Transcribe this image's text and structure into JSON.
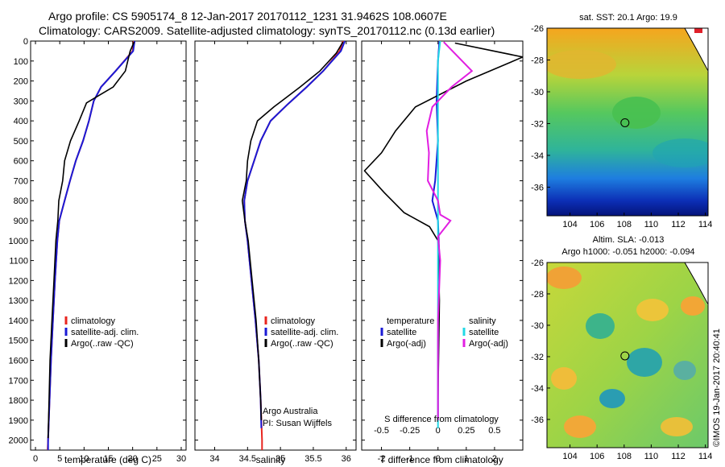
{
  "header": {
    "line1": "Argo profile: CS 5905174_8 12-Jan-2017 20170112_1231 31.9462S 108.0607E",
    "line2": "Climatology: CARS2009. Satellite-adjusted climatology: synTS_20170112.nc (0.13d earlier)"
  },
  "colors": {
    "climatology": "#e8251f",
    "satellite": "#1a1ad6",
    "argo": "#000000",
    "salinity_satellite": "#22d8e6",
    "salinity_argo": "#e11ee1"
  },
  "chart_data": [
    {
      "type": "line",
      "panel": "temperature",
      "xlabel": "temperature (deg C)",
      "ylabel": "",
      "xlim": [
        -1,
        31
      ],
      "ylim": [
        2050,
        0
      ],
      "xticks": [
        0,
        5,
        10,
        15,
        20,
        25,
        30
      ],
      "yticks": [
        0,
        100,
        200,
        300,
        400,
        500,
        600,
        700,
        800,
        900,
        1000,
        1100,
        1200,
        1300,
        1400,
        1500,
        1600,
        1700,
        1800,
        1900,
        2000
      ],
      "legend": [
        "climatology",
        "satellite-adj. clim.",
        "Argo(..raw -QC)"
      ],
      "series": [
        {
          "name": "climatology",
          "color": "#e8251f",
          "points": [
            [
              20.2,
              0
            ],
            [
              20.0,
              50
            ],
            [
              16.5,
              150
            ],
            [
              13.5,
              230
            ],
            [
              12.0,
              300
            ],
            [
              11.0,
              400
            ],
            [
              9.8,
              500
            ],
            [
              8.3,
              600
            ],
            [
              7.1,
              700
            ],
            [
              6.0,
              800
            ],
            [
              4.9,
              900
            ],
            [
              4.5,
              1000
            ],
            [
              4.0,
              1200
            ],
            [
              3.6,
              1400
            ],
            [
              3.2,
              1600
            ],
            [
              2.9,
              1800
            ],
            [
              2.6,
              2000
            ],
            [
              2.5,
              2050
            ]
          ]
        },
        {
          "name": "satellite-adj. clim.",
          "color": "#1a1ad6",
          "points": [
            [
              20.4,
              0
            ],
            [
              20.1,
              50
            ],
            [
              16.5,
              150
            ],
            [
              13.5,
              230
            ],
            [
              12.0,
              300
            ],
            [
              11.0,
              400
            ],
            [
              9.8,
              500
            ],
            [
              8.3,
              600
            ],
            [
              7.1,
              700
            ],
            [
              6.0,
              800
            ],
            [
              4.9,
              900
            ],
            [
              4.5,
              1000
            ],
            [
              4.0,
              1200
            ],
            [
              3.6,
              1400
            ],
            [
              3.2,
              1600
            ],
            [
              2.9,
              1800
            ],
            [
              2.6,
              2000
            ],
            [
              2.6,
              2050
            ]
          ]
        },
        {
          "name": "Argo(..raw -QC)",
          "color": "#000000",
          "points": [
            [
              20.3,
              5
            ],
            [
              19.5,
              50
            ],
            [
              18.5,
              150
            ],
            [
              16.0,
              230
            ],
            [
              10.5,
              310
            ],
            [
              9.0,
              400
            ],
            [
              7.2,
              500
            ],
            [
              6.0,
              600
            ],
            [
              5.6,
              700
            ],
            [
              4.8,
              800
            ],
            [
              4.6,
              900
            ],
            [
              4.2,
              1000
            ],
            [
              3.8,
              1200
            ],
            [
              3.4,
              1400
            ],
            [
              3.0,
              1600
            ],
            [
              2.8,
              1800
            ],
            [
              2.6,
              1990
            ]
          ]
        }
      ]
    },
    {
      "type": "line",
      "panel": "salinity",
      "xlabel": "salinity",
      "ylabel": "",
      "xlim": [
        33.7,
        36.15
      ],
      "ylim": [
        2050,
        0
      ],
      "xticks": [
        34,
        34.5,
        35,
        35.5,
        36
      ],
      "legend": [
        "climatology",
        "satellite-adj. clim.",
        "Argo(..raw -QC)"
      ],
      "annotation": [
        "Argo Australia",
        "PI: Susan Wijffels"
      ],
      "series": [
        {
          "name": "climatology",
          "color": "#e8251f",
          "points": [
            [
              35.95,
              0
            ],
            [
              35.9,
              50
            ],
            [
              35.65,
              150
            ],
            [
              35.4,
              230
            ],
            [
              35.1,
              320
            ],
            [
              34.85,
              400
            ],
            [
              34.7,
              500
            ],
            [
              34.6,
              600
            ],
            [
              34.5,
              700
            ],
            [
              34.45,
              800
            ],
            [
              34.46,
              900
            ],
            [
              34.5,
              1000
            ],
            [
              34.56,
              1200
            ],
            [
              34.62,
              1400
            ],
            [
              34.67,
              1600
            ],
            [
              34.7,
              1800
            ],
            [
              34.72,
              2000
            ],
            [
              34.72,
              2050
            ]
          ]
        },
        {
          "name": "satellite-adj. clim.",
          "color": "#1a1ad6",
          "points": [
            [
              35.98,
              0
            ],
            [
              35.92,
              50
            ],
            [
              35.65,
              150
            ],
            [
              35.4,
              230
            ],
            [
              35.1,
              320
            ],
            [
              34.85,
              400
            ],
            [
              34.7,
              500
            ],
            [
              34.6,
              600
            ],
            [
              34.5,
              700
            ],
            [
              34.45,
              800
            ],
            [
              34.46,
              900
            ],
            [
              34.5,
              1000
            ],
            [
              34.56,
              1200
            ],
            [
              34.62,
              1400
            ],
            [
              34.67,
              1600
            ],
            [
              34.7,
              1800
            ],
            [
              34.71,
              1940
            ]
          ]
        },
        {
          "name": "Argo(..raw -QC)",
          "color": "#000000",
          "points": [
            [
              35.95,
              5
            ],
            [
              35.85,
              60
            ],
            [
              35.6,
              150
            ],
            [
              35.3,
              230
            ],
            [
              34.9,
              330
            ],
            [
              34.65,
              400
            ],
            [
              34.55,
              500
            ],
            [
              34.5,
              600
            ],
            [
              34.48,
              700
            ],
            [
              34.42,
              800
            ],
            [
              34.46,
              900
            ],
            [
              34.51,
              1000
            ],
            [
              34.57,
              1200
            ],
            [
              34.63,
              1400
            ],
            [
              34.67,
              1600
            ],
            [
              34.7,
              1800
            ],
            [
              34.71,
              1900
            ]
          ]
        }
      ]
    },
    {
      "type": "line",
      "panel": "differences",
      "xlabel": "T difference from climatology",
      "xlabel_top": "S difference from climatology",
      "xlim": [
        -2.7,
        3.0
      ],
      "ylim": [
        2050,
        0
      ],
      "xticks": [
        -2,
        -1,
        0,
        1,
        2
      ],
      "xticks_top": [
        -0.5,
        -0.25,
        0,
        0.25,
        0.5
      ],
      "xlim_top": [
        -0.675,
        0.75
      ],
      "legend_groups": [
        {
          "title": "temperature",
          "items": [
            "satellite",
            "Argo(-adj)"
          ]
        },
        {
          "title": "salinity",
          "items": [
            "satellite",
            "Argo(-adj)"
          ]
        }
      ],
      "series": [
        {
          "name": "temperature satellite",
          "color": "#1a1ad6",
          "axis": "T",
          "points": [
            [
              0.05,
              0
            ],
            [
              0.0,
              100
            ],
            [
              -0.05,
              300
            ],
            [
              0.0,
              500
            ],
            [
              -0.1,
              700
            ],
            [
              -0.2,
              800
            ],
            [
              0.0,
              900
            ],
            [
              0.05,
              1100
            ],
            [
              0.0,
              1500
            ],
            [
              0.0,
              1900
            ]
          ]
        },
        {
          "name": "temperature Argo(-adj)",
          "color": "#000000",
          "axis": "T",
          "points": [
            [
              0.6,
              10
            ],
            [
              3.0,
              80
            ],
            [
              1.0,
              200
            ],
            [
              -0.8,
              330
            ],
            [
              -1.5,
              450
            ],
            [
              -2.0,
              560
            ],
            [
              -2.6,
              650
            ],
            [
              -1.9,
              760
            ],
            [
              -1.2,
              860
            ],
            [
              -0.3,
              930
            ],
            [
              0.0,
              1000
            ],
            [
              0.05,
              1300
            ],
            [
              0.0,
              1800
            ]
          ]
        },
        {
          "name": "salinity satellite",
          "color": "#22d8e6",
          "axis": "S",
          "points": [
            [
              0.02,
              0
            ],
            [
              0.0,
              100
            ],
            [
              0.0,
              300
            ],
            [
              0.0,
              500
            ],
            [
              0.0,
              700
            ],
            [
              0.0,
              1000
            ],
            [
              0.0,
              1500
            ],
            [
              0.0,
              1940
            ]
          ]
        },
        {
          "name": "salinity Argo(-adj)",
          "color": "#e11ee1",
          "axis": "S",
          "points": [
            [
              0.05,
              5
            ],
            [
              0.3,
              150
            ],
            [
              0.12,
              230
            ],
            [
              -0.05,
              330
            ],
            [
              -0.1,
              450
            ],
            [
              -0.08,
              560
            ],
            [
              -0.09,
              700
            ],
            [
              0.0,
              800
            ],
            [
              0.02,
              870
            ],
            [
              0.11,
              900
            ],
            [
              0.0,
              980
            ],
            [
              0.02,
              1100
            ],
            [
              0.0,
              1400
            ],
            [
              0.0,
              1900
            ]
          ]
        }
      ]
    }
  ],
  "maps": [
    {
      "title": "sat. SST: 20.1  Argo: 19.9",
      "xticks": [
        104,
        106,
        108,
        110,
        112,
        114
      ],
      "yticks": [
        -26,
        -28,
        -30,
        -32,
        -34,
        -36
      ],
      "xlim": [
        102.3,
        114.2
      ],
      "ylim": [
        -37.8,
        -26
      ],
      "marker": {
        "lon": 108.06,
        "lat": -31.95
      }
    },
    {
      "title": "Altim. SLA: -0.013",
      "subtitle": "Argo h1000: -0.051 h2000: -0.094",
      "xticks": [
        104,
        106,
        108,
        110,
        112,
        114
      ],
      "yticks": [
        -26,
        -28,
        -30,
        -32,
        -34,
        -36
      ],
      "xlim": [
        102.3,
        114.2
      ],
      "ylim": [
        -37.8,
        -26
      ],
      "marker": {
        "lon": 108.06,
        "lat": -31.95
      }
    }
  ],
  "sidebar_stamp": "©IMOS 19-Jan-2017 20:40:41"
}
